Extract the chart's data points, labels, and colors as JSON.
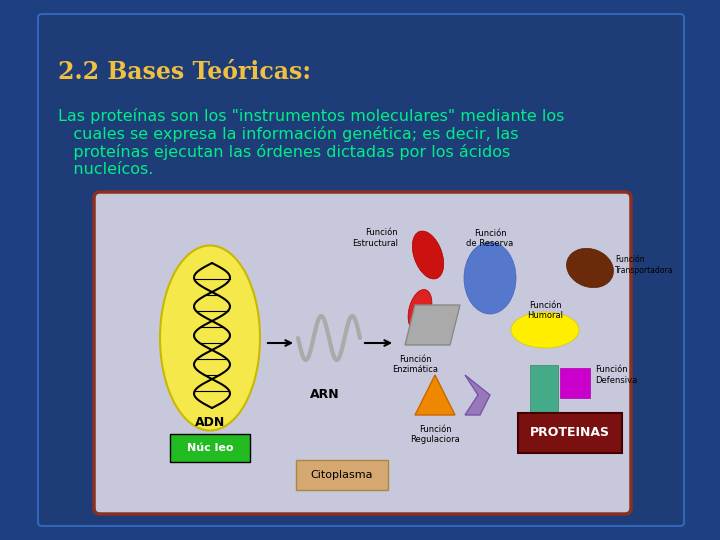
{
  "bg_outer_color": "#1e4080",
  "slide_bg": "#1e3f7a",
  "inner_bg": "#1a3870",
  "inner_edge": "#2255aa",
  "title": "2.2 Bases Teóricas:",
  "title_color": "#f0c040",
  "title_fontsize": 17,
  "body_line1": "Las proteínas son los \"instrumentos moleculares\" mediante los",
  "body_line2": "   cuales se expresa la información genética; es decir, las",
  "body_line3": "   proteínas ejecutan las órdenes dictadas por los ácidos",
  "body_line4": "   nucleícos.",
  "body_color": "#00ee88",
  "body_fontsize": 11.5,
  "img_panel_bg": "#c8c8dc",
  "img_panel_edge": "#8b3020",
  "nucleus_label": "Núc leo",
  "nucleus_label_bg": "#22bb22",
  "cytoplasm_label": "Citoplasma",
  "cytoplasm_label_bg": "#d4a870",
  "proteinas_label": "PROTEINAS",
  "proteinas_label_bg": "#7a1010",
  "adn_label": "ADN",
  "arn_label": "ARN"
}
